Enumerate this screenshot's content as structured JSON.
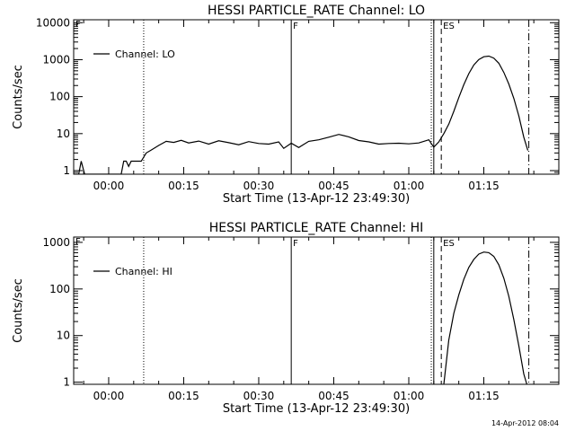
{
  "footer_date": "14-Apr-2012 08:04",
  "chart_data": [
    {
      "type": "line",
      "title": "HESSI PARTICLE_RATE Channel: LO",
      "xlabel": "Start Time (13-Apr-12 23:49:30)",
      "ylabel": "Counts/sec",
      "y_scale": "log",
      "xlim": [
        -7,
        90
      ],
      "ylim": [
        0.8,
        12000
      ],
      "x_unit": "minutes after 00:00",
      "x_ticks": [
        {
          "x": 0,
          "label": "00:00"
        },
        {
          "x": 15,
          "label": "00:15"
        },
        {
          "x": 30,
          "label": "00:30"
        },
        {
          "x": 45,
          "label": "00:45"
        },
        {
          "x": 60,
          "label": "01:00"
        },
        {
          "x": 75,
          "label": "01:15"
        }
      ],
      "y_ticks": [
        {
          "y": 1,
          "label": "1"
        },
        {
          "y": 10,
          "label": "10"
        },
        {
          "y": 100,
          "label": "100"
        },
        {
          "y": 1000,
          "label": "1000"
        },
        {
          "y": 10000,
          "label": "10000"
        }
      ],
      "legend_placement": "top-left",
      "series": [
        {
          "name": "Channel: LO",
          "color": "#000000",
          "x": [
            -7.0,
            -6.0,
            -5.5,
            -4.8,
            -4.5,
            2.5,
            3.0,
            3.5,
            4.0,
            4.5,
            6.5,
            7.5,
            8.5,
            10.0,
            11.5,
            13.0,
            14.5,
            16.0,
            18.0,
            20.0,
            22.0,
            24.0,
            26.0,
            28.0,
            30.0,
            32.0,
            34.0,
            35.0,
            36.5,
            38.0,
            40.0,
            42.0,
            44.0,
            46.0,
            48.0,
            50.0,
            52.0,
            54.0,
            56.0,
            58.0,
            60.0,
            62.0,
            64.0,
            65.0,
            66.0,
            67.0,
            68.0,
            69.0,
            70.0,
            71.0,
            72.0,
            73.0,
            74.0,
            75.0,
            76.0,
            77.0,
            78.0,
            79.0,
            80.0,
            81.0,
            82.0,
            83.0,
            83.8
          ],
          "y": [
            0.8,
            0.8,
            1.8,
            0.8,
            0.8,
            0.8,
            1.8,
            1.8,
            1.3,
            1.8,
            1.8,
            3.0,
            3.6,
            4.8,
            6.2,
            5.8,
            6.6,
            5.6,
            6.3,
            5.2,
            6.4,
            5.7,
            5.0,
            6.1,
            5.4,
            5.2,
            6.0,
            4.0,
            5.5,
            4.2,
            6.2,
            6.8,
            8.0,
            9.5,
            8.2,
            6.5,
            6.0,
            5.2,
            5.4,
            5.5,
            5.3,
            5.6,
            6.8,
            4.3,
            6.0,
            10.0,
            18.0,
            40.0,
            95.0,
            210.0,
            420.0,
            720.0,
            1000.0,
            1200.0,
            1250.0,
            1100.0,
            800.0,
            450.0,
            220.0,
            90.0,
            30.0,
            8.0,
            3.5
          ]
        }
      ],
      "markers": [
        {
          "x": 7.0,
          "style": "dotted",
          "label": ""
        },
        {
          "x": 36.5,
          "style": "solid",
          "label": "F"
        },
        {
          "x": 64.5,
          "style": "dotted",
          "label": ""
        },
        {
          "x": 65.0,
          "style": "solid",
          "label": ""
        },
        {
          "x": 66.5,
          "style": "dashed",
          "label": "ES"
        },
        {
          "x": 84.0,
          "style": "dashdot",
          "label": ""
        }
      ],
      "start_marker_label": "F"
    },
    {
      "type": "line",
      "title": "HESSI PARTICLE_RATE Channel: HI",
      "xlabel": "Start Time (13-Apr-12 23:49:30)",
      "ylabel": "Counts/sec",
      "y_scale": "log",
      "xlim": [
        -7,
        90
      ],
      "ylim": [
        0.9,
        1300
      ],
      "x_unit": "minutes after 00:00",
      "x_ticks": [
        {
          "x": 0,
          "label": "00:00"
        },
        {
          "x": 15,
          "label": "00:15"
        },
        {
          "x": 30,
          "label": "00:30"
        },
        {
          "x": 45,
          "label": "00:45"
        },
        {
          "x": 60,
          "label": "01:00"
        },
        {
          "x": 75,
          "label": "01:15"
        }
      ],
      "y_ticks": [
        {
          "y": 1,
          "label": "1"
        },
        {
          "y": 10,
          "label": "10"
        },
        {
          "y": 100,
          "label": "100"
        },
        {
          "y": 1000,
          "label": "1000"
        }
      ],
      "legend_placement": "top-left",
      "series": [
        {
          "name": "Channel: HI",
          "color": "#000000",
          "x": [
            67.0,
            68.0,
            69.0,
            70.0,
            71.0,
            72.0,
            73.0,
            74.0,
            75.0,
            76.0,
            77.0,
            78.0,
            79.0,
            80.0,
            81.0,
            82.0,
            83.0,
            83.6
          ],
          "y": [
            0.9,
            8.0,
            30.0,
            75.0,
            160.0,
            290.0,
            430.0,
            560.0,
            620.0,
            600.0,
            500.0,
            330.0,
            170.0,
            70.0,
            22.0,
            6.0,
            1.5,
            0.9
          ]
        }
      ],
      "markers": [
        {
          "x": 7.0,
          "style": "dotted",
          "label": ""
        },
        {
          "x": 36.5,
          "style": "solid",
          "label": "F"
        },
        {
          "x": 64.5,
          "style": "dotted",
          "label": ""
        },
        {
          "x": 65.0,
          "style": "solid",
          "label": ""
        },
        {
          "x": 66.5,
          "style": "dashed",
          "label": "ES"
        },
        {
          "x": 84.0,
          "style": "dashdot",
          "label": ""
        }
      ],
      "start_marker_label": "F"
    }
  ]
}
